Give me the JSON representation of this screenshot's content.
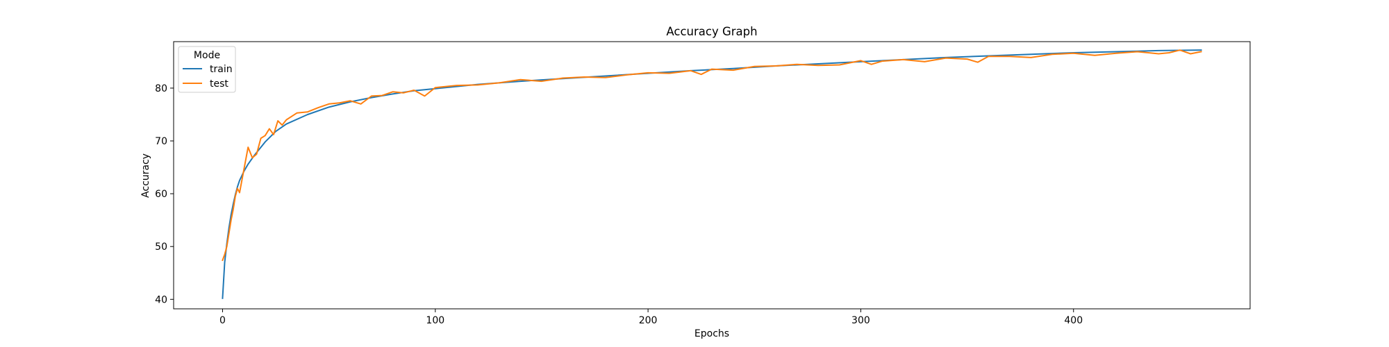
{
  "chart_data": {
    "type": "line",
    "title": "Accuracy Graph",
    "xlabel": "Epochs",
    "ylabel": "Accuracy",
    "xlim": [
      -23,
      483
    ],
    "ylim": [
      38.2,
      88.8
    ],
    "xticks": [
      0,
      100,
      200,
      300,
      400
    ],
    "yticks": [
      40,
      50,
      60,
      70,
      80
    ],
    "grid": false,
    "legend": {
      "title": "Mode",
      "placement": "top-left"
    },
    "series": [
      {
        "name": "train",
        "color": "#1f77b4",
        "x": [
          0,
          1,
          2,
          3,
          4,
          5,
          6,
          7,
          8,
          10,
          12,
          15,
          20,
          25,
          30,
          40,
          50,
          60,
          70,
          80,
          90,
          100,
          120,
          140,
          160,
          180,
          200,
          220,
          240,
          260,
          280,
          300,
          320,
          340,
          360,
          380,
          400,
          420,
          440,
          460
        ],
        "y": [
          40.2,
          47.0,
          50.5,
          53.5,
          56.0,
          58.0,
          59.8,
          61.3,
          62.5,
          64.2,
          65.6,
          67.3,
          69.8,
          71.8,
          73.2,
          75.0,
          76.4,
          77.4,
          78.2,
          78.9,
          79.5,
          79.9,
          80.7,
          81.3,
          81.8,
          82.3,
          82.8,
          83.3,
          83.7,
          84.2,
          84.6,
          85.0,
          85.4,
          85.8,
          86.1,
          86.4,
          86.7,
          86.9,
          87.1,
          87.2
        ]
      },
      {
        "name": "test",
        "color": "#ff7f0e",
        "x": [
          0,
          1,
          2,
          3,
          4,
          5,
          6,
          7,
          8,
          10,
          12,
          14,
          16,
          18,
          20,
          22,
          24,
          26,
          28,
          30,
          35,
          40,
          45,
          50,
          55,
          60,
          65,
          70,
          75,
          80,
          85,
          90,
          95,
          100,
          110,
          120,
          130,
          140,
          150,
          160,
          170,
          180,
          190,
          200,
          210,
          220,
          225,
          230,
          240,
          250,
          260,
          270,
          280,
          290,
          300,
          305,
          310,
          320,
          330,
          340,
          350,
          355,
          360,
          370,
          380,
          390,
          400,
          410,
          420,
          430,
          440,
          445,
          450,
          455,
          460
        ],
        "y": [
          47.4,
          48.5,
          50.0,
          52.5,
          55.0,
          57.0,
          59.5,
          61.0,
          60.2,
          64.5,
          68.8,
          66.8,
          67.5,
          70.5,
          71.0,
          72.3,
          71.2,
          73.8,
          73.0,
          74.0,
          75.3,
          75.5,
          76.3,
          77.0,
          77.2,
          77.6,
          77.0,
          78.5,
          78.6,
          79.3,
          79.1,
          79.6,
          78.5,
          80.1,
          80.5,
          80.6,
          81.0,
          81.6,
          81.3,
          81.9,
          82.1,
          82.0,
          82.5,
          82.9,
          82.8,
          83.3,
          82.6,
          83.6,
          83.4,
          84.1,
          84.2,
          84.5,
          84.3,
          84.4,
          85.2,
          84.5,
          85.1,
          85.4,
          85.0,
          85.7,
          85.5,
          84.9,
          86.0,
          86.0,
          85.8,
          86.4,
          86.6,
          86.2,
          86.6,
          86.9,
          86.5,
          86.7,
          87.2,
          86.5,
          86.9
        ]
      }
    ]
  }
}
